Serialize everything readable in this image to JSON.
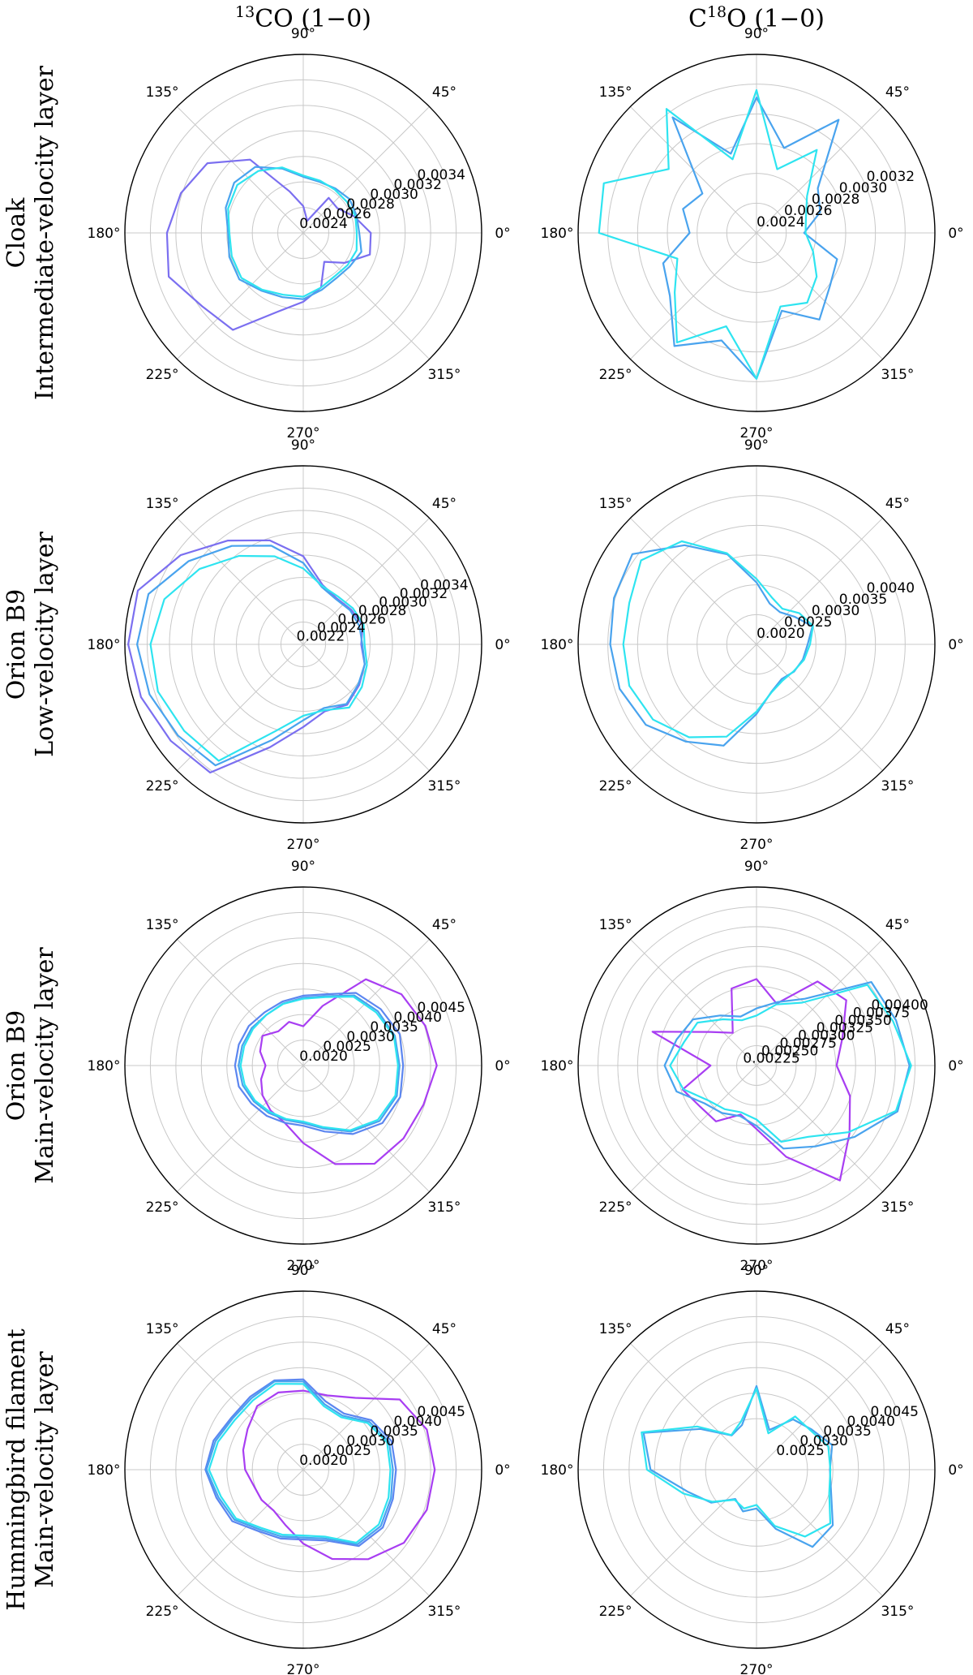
{
  "column_titles": [
    {
      "base": "",
      "sup": "13",
      "rest": "CO (1−0)"
    },
    {
      "base": "C",
      "sup": "18",
      "rest": "O (1−0)"
    }
  ],
  "row_labels": [
    [
      "Cloak",
      "Intermediate-velocity layer"
    ],
    [
      "Orion B9",
      "Low-velocity layer"
    ],
    [
      "Orion B9",
      "Main-velocity layer"
    ],
    [
      "Hummingbird filament",
      "Main-velocity layer"
    ]
  ],
  "angle_labels": [
    "0°",
    "45°",
    "90°",
    "135°",
    "180°",
    "225°",
    "270°",
    "315°"
  ],
  "chart_data": [
    {
      "type": "polar-line",
      "row": 0,
      "col": 0,
      "radial_ticks": [
        "0.0024",
        "0.0026",
        "0.0028",
        "0.0030",
        "0.0032",
        "0.0034"
      ],
      "tick_values": [
        0.0024,
        0.0026,
        0.0028,
        0.003,
        0.0032,
        0.0034
      ],
      "rmin": 0.0022,
      "rmax": 0.0036,
      "series": [
        {
          "color": "#7b6ff0",
          "values": [
            0.00273,
            0.00262,
            0.00253,
            0.00254,
            0.0023,
            0.00241,
            0.00254,
            0.00291,
            0.00313,
            0.00321,
            0.00327,
            0.00331,
            0.00318,
            0.00314,
            0.00285,
            0.00274,
            0.00265,
            0.00248,
            0.0026,
            0.00275
          ]
        },
        {
          "color": "#49a3ee",
          "values": [
            0.00264,
            0.00264,
            0.00265,
            0.00263,
            0.00262,
            0.00264,
            0.00273,
            0.00284,
            0.00287,
            0.00284,
            0.00279,
            0.00281,
            0.00282,
            0.00276,
            0.00273,
            0.00272,
            0.00267,
            0.00264,
            0.00265,
            0.00268
          ]
        },
        {
          "color": "#2ee4f0",
          "values": [
            0.00262,
            0.00263,
            0.00262,
            0.00262,
            0.00263,
            0.00265,
            0.00274,
            0.0028,
            0.00284,
            0.00282,
            0.00278,
            0.00279,
            0.0028,
            0.00275,
            0.00271,
            0.0027,
            0.00265,
            0.00262,
            0.00263,
            0.00264
          ]
        }
      ]
    },
    {
      "type": "polar-line",
      "row": 0,
      "col": 1,
      "radial_ticks": [
        "0.0024",
        "0.0026",
        "0.0028",
        "0.0030",
        "0.0032"
      ],
      "tick_values": [
        0.0024,
        0.0026,
        0.0028,
        0.003,
        0.0032
      ],
      "rmin": 0.0022,
      "rmax": 0.0034,
      "series": [
        {
          "color": "#49a3ee",
          "values": [
            0.00252,
            0.00265,
            0.00271,
            0.00314,
            0.0028,
            0.00311,
            0.00276,
            0.00316,
            0.00265,
            0.00272,
            0.00265,
            0.00286,
            0.00292,
            0.00314,
            0.00296,
            0.00318,
            0.00275,
            0.00292,
            0.00281,
            0.00277
          ]
        },
        {
          "color": "#2ee4f0",
          "values": [
            0.00253,
            0.00255,
            0.00262,
            0.00289,
            0.00265,
            0.00316,
            0.00272,
            0.00323,
            0.00293,
            0.00328,
            0.00326,
            0.00276,
            0.00288,
            0.00311,
            0.00286,
            0.00318,
            0.00272,
            0.00278,
            0.0027,
            0.0026
          ]
        }
      ]
    },
    {
      "type": "polar-line",
      "row": 1,
      "col": 0,
      "radial_ticks": [
        "0.0022",
        "0.0024",
        "0.0026",
        "0.0028",
        "0.0030",
        "0.0032",
        "0.0034"
      ],
      "tick_values": [
        0.0022,
        0.0024,
        0.0026,
        0.0028,
        0.003,
        0.0032,
        0.0034
      ],
      "rmin": 0.002,
      "rmax": 0.0036,
      "series": [
        {
          "color": "#7b6ff0",
          "values": [
            0.00252,
            0.00256,
            0.00253,
            0.00251,
            0.00256,
            0.00279,
            0.00298,
            0.00315,
            0.00336,
            0.00356,
            0.00357,
            0.00353,
            0.00347,
            0.00342,
            0.00297,
            0.00274,
            0.00263,
            0.00267,
            0.00262,
            0.00258
          ]
        },
        {
          "color": "#49a3ee",
          "values": [
            0.00253,
            0.00253,
            0.00252,
            0.0025,
            0.00254,
            0.00273,
            0.00293,
            0.00309,
            0.00327,
            0.00346,
            0.00349,
            0.00345,
            0.00339,
            0.00334,
            0.0029,
            0.00268,
            0.0026,
            0.00266,
            0.00261,
            0.00258
          ]
        },
        {
          "color": "#2ee4f0",
          "values": [
            0.00255,
            0.00257,
            0.00255,
            0.00253,
            0.00255,
            0.00268,
            0.00283,
            0.00298,
            0.00315,
            0.00331,
            0.00337,
            0.00337,
            0.00332,
            0.00329,
            0.00282,
            0.00264,
            0.00262,
            0.0027,
            0.00265,
            0.0026
          ]
        }
      ]
    },
    {
      "type": "polar-line",
      "row": 1,
      "col": 1,
      "radial_ticks": [
        "0.0020",
        "0.0025",
        "0.0030",
        "0.0035",
        "0.0040"
      ],
      "tick_values": [
        0.002,
        0.0025,
        0.003,
        0.0035,
        0.004
      ],
      "rmin": 0.0015,
      "rmax": 0.0045,
      "series": [
        {
          "color": "#49a3ee",
          "values": [
            0.00236,
            0.00249,
            0.00229,
            0.00217,
            0.00222,
            0.00254,
            0.00309,
            0.00356,
            0.00408,
            0.00402,
            0.00396,
            0.00392,
            0.0038,
            0.00352,
            0.00329,
            0.00267,
            0.00233,
            0.00222,
            0.00228,
            0.00232
          ]
        },
        {
          "color": "#2ee4f0",
          "values": [
            0.0024,
            0.0025,
            0.00239,
            0.00224,
            0.00233,
            0.0026,
            0.00311,
            0.00364,
            0.0039,
            0.00375,
            0.00374,
            0.00375,
            0.00365,
            0.00343,
            0.00313,
            0.00263,
            0.00234,
            0.00225,
            0.00227,
            0.00234
          ]
        }
      ]
    },
    {
      "type": "polar-line",
      "row": 2,
      "col": 0,
      "radial_ticks": [
        "0.0020",
        "0.0025",
        "0.0030",
        "0.0035",
        "0.0040",
        "0.0045"
      ],
      "tick_values": [
        0.002,
        0.0025,
        0.003,
        0.0035,
        0.004,
        0.0045
      ],
      "rmin": 0.0015,
      "rmax": 0.005,
      "series": [
        {
          "color": "#a83ef2",
          "values": [
            0.00412,
            0.00402,
            0.00388,
            0.00359,
            0.00273,
            0.00227,
            0.0024,
            0.00233,
            0.00249,
            0.00239,
            0.00224,
            0.00237,
            0.00249,
            0.00259,
            0.00268,
            0.00302,
            0.00353,
            0.00388,
            0.00393,
            0.00398
          ]
        },
        {
          "color": "#5c86f0",
          "values": [
            0.00346,
            0.00349,
            0.00338,
            0.00326,
            0.00297,
            0.00287,
            0.00282,
            0.00279,
            0.00282,
            0.00283,
            0.00284,
            0.00283,
            0.00276,
            0.00272,
            0.00268,
            0.00268,
            0.00286,
            0.00316,
            0.00342,
            0.0035
          ]
        },
        {
          "color": "#49a3ee",
          "values": [
            0.00339,
            0.00339,
            0.00331,
            0.0032,
            0.00293,
            0.00283,
            0.00278,
            0.00273,
            0.00275,
            0.00276,
            0.00277,
            0.00275,
            0.0027,
            0.00265,
            0.00262,
            0.00263,
            0.0028,
            0.0031,
            0.00335,
            0.00343
          ]
        },
        {
          "color": "#2ee4f0",
          "values": [
            0.00336,
            0.00337,
            0.00327,
            0.00317,
            0.00291,
            0.00281,
            0.00277,
            0.00273,
            0.00272,
            0.00272,
            0.00273,
            0.00271,
            0.00267,
            0.00262,
            0.0026,
            0.0026,
            0.00277,
            0.00307,
            0.00331,
            0.0034
          ]
        }
      ]
    },
    {
      "type": "polar-line",
      "row": 2,
      "col": 1,
      "radial_ticks": [
        "0.00225",
        "0.00250",
        "0.00275",
        "0.00300",
        "0.00325",
        "0.00350",
        "0.00375",
        "0.00400"
      ],
      "tick_values": [
        0.00225,
        0.0025,
        0.00275,
        0.003,
        0.00325,
        0.0035,
        0.00375,
        0.004
      ],
      "rmin": 0.002,
      "rmax": 0.00425,
      "series": [
        {
          "color": "#a83ef2",
          "values": [
            0.00301,
            0.00314,
            0.0034,
            0.00331,
            0.00282,
            0.00309,
            0.00302,
            0.00251,
            0.00272,
            0.00338,
            0.00258,
            0.00298,
            0.00288,
            0.00287,
            0.00265,
            0.0028,
            0.00321,
            0.00379,
            0.00345,
            0.00324
          ]
        },
        {
          "color": "#49a3ee",
          "values": [
            0.00393,
            0.00385,
            0.00379,
            0.00304,
            0.00284,
            0.00272,
            0.00265,
            0.00278,
            0.00299,
            0.00306,
            0.00316,
            0.00306,
            0.00281,
            0.00274,
            0.00267,
            0.00276,
            0.0031,
            0.00326,
            0.00353,
            0.00387
          ]
        },
        {
          "color": "#2ee4f0",
          "values": [
            0.00395,
            0.00381,
            0.00373,
            0.00298,
            0.00281,
            0.00263,
            0.0026,
            0.00272,
            0.00292,
            0.00296,
            0.00309,
            0.00297,
            0.00275,
            0.00268,
            0.00262,
            0.00268,
            0.00301,
            0.00311,
            0.00343,
            0.00385
          ]
        }
      ]
    },
    {
      "type": "polar-line",
      "row": 3,
      "col": 0,
      "radial_ticks": [
        "0.0020",
        "0.0025",
        "0.0030",
        "0.0035",
        "0.0040",
        "0.0045"
      ],
      "tick_values": [
        0.002,
        0.0025,
        0.003,
        0.0035,
        0.004,
        0.0045
      ],
      "rmin": 0.0015,
      "rmax": 0.005,
      "series": [
        {
          "color": "#a83ef2",
          "values": [
            0.00408,
            0.00405,
            0.00384,
            0.00324,
            0.00303,
            0.00305,
            0.00309,
            0.00304,
            0.00285,
            0.00274,
            0.00264,
            0.00252,
            0.00251,
            0.00249,
            0.00264,
            0.00295,
            0.00334,
            0.00367,
            0.00394,
            0.00405
          ]
        },
        {
          "color": "#5c86f0",
          "values": [
            0.00332,
            0.00332,
            0.00315,
            0.00286,
            0.00291,
            0.00327,
            0.00334,
            0.00327,
            0.00324,
            0.00335,
            0.00342,
            0.00329,
            0.00322,
            0.00299,
            0.00292,
            0.00287,
            0.00296,
            0.00335,
            0.00343,
            0.00335
          ]
        },
        {
          "color": "#49a3ee",
          "values": [
            0.00326,
            0.00327,
            0.0031,
            0.00281,
            0.00285,
            0.00323,
            0.00332,
            0.00323,
            0.00321,
            0.00331,
            0.0034,
            0.00325,
            0.00317,
            0.00295,
            0.00288,
            0.00283,
            0.00292,
            0.00331,
            0.00338,
            0.00331
          ]
        },
        {
          "color": "#2ee4f0",
          "values": [
            0.00321,
            0.00323,
            0.00306,
            0.00277,
            0.00281,
            0.00318,
            0.00327,
            0.00318,
            0.00316,
            0.00326,
            0.00335,
            0.0032,
            0.00313,
            0.00291,
            0.00284,
            0.00279,
            0.00288,
            0.00327,
            0.00333,
            0.00326
          ]
        }
      ]
    },
    {
      "type": "polar-line",
      "row": 3,
      "col": 1,
      "radial_ticks": [
        "0.0025",
        "0.0030",
        "0.0035",
        "0.0040",
        "0.0045"
      ],
      "tick_values": [
        0.0025,
        0.003,
        0.0035,
        0.004,
        0.0045
      ],
      "rmin": 0.0015,
      "rmax": 0.005,
      "series": [
        {
          "color": "#49a3ee",
          "values": [
            0.00294,
            0.00306,
            0.00284,
            0.00272,
            0.00232,
            0.00314,
            0.00242,
            0.00233,
            0.00286,
            0.00383,
            0.00358,
            0.00291,
            0.0026,
            0.00221,
            0.00236,
            0.00226,
            0.00272,
            0.00337,
            0.00335,
            0.00304
          ]
        },
        {
          "color": "#2ee4f0",
          "values": [
            0.00295,
            0.00298,
            0.00281,
            0.00279,
            0.00225,
            0.00309,
            0.00249,
            0.00234,
            0.00294,
            0.00387,
            0.00365,
            0.00301,
            0.00257,
            0.00223,
            0.0023,
            0.00219,
            0.00266,
            0.00312,
            0.00329,
            0.003
          ]
        }
      ]
    }
  ]
}
